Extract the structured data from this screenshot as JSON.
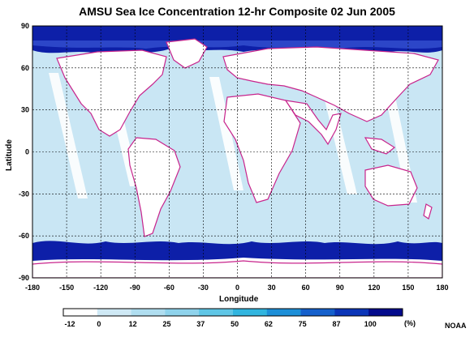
{
  "title": "AMSU Sea Ice Concentration 12-hr Composite  02 Jun 2005",
  "xlabel": "Longitude",
  "ylabel": "Latitude",
  "credit": "NOAA",
  "lon_ticks": [
    "-180",
    "-150",
    "-120",
    "-90",
    "-60",
    "-30",
    "0",
    "30",
    "60",
    "90",
    "120",
    "150",
    "180"
  ],
  "lat_ticks": [
    "90",
    "60",
    "30",
    "0",
    "-30",
    "-60",
    "-90"
  ],
  "colorbar": {
    "labels": [
      "-12",
      "0",
      "12",
      "25",
      "37",
      "50",
      "62",
      "75",
      "87",
      "100"
    ],
    "unit": "(%)",
    "colors": [
      "#ffffff",
      "#cfe9f5",
      "#b0def0",
      "#8fd3ec",
      "#5fc6e6",
      "#31b5df",
      "#1d8fd8",
      "#1560cc",
      "#0b35b8",
      "#030a8c"
    ]
  },
  "colors": {
    "ocean": "#c9e6f4",
    "land": "#ffffff",
    "coast": "#c8248c",
    "ice_high": "#0d1fa8",
    "ice_mid": "#3b57d6",
    "grid": "#000000"
  }
}
